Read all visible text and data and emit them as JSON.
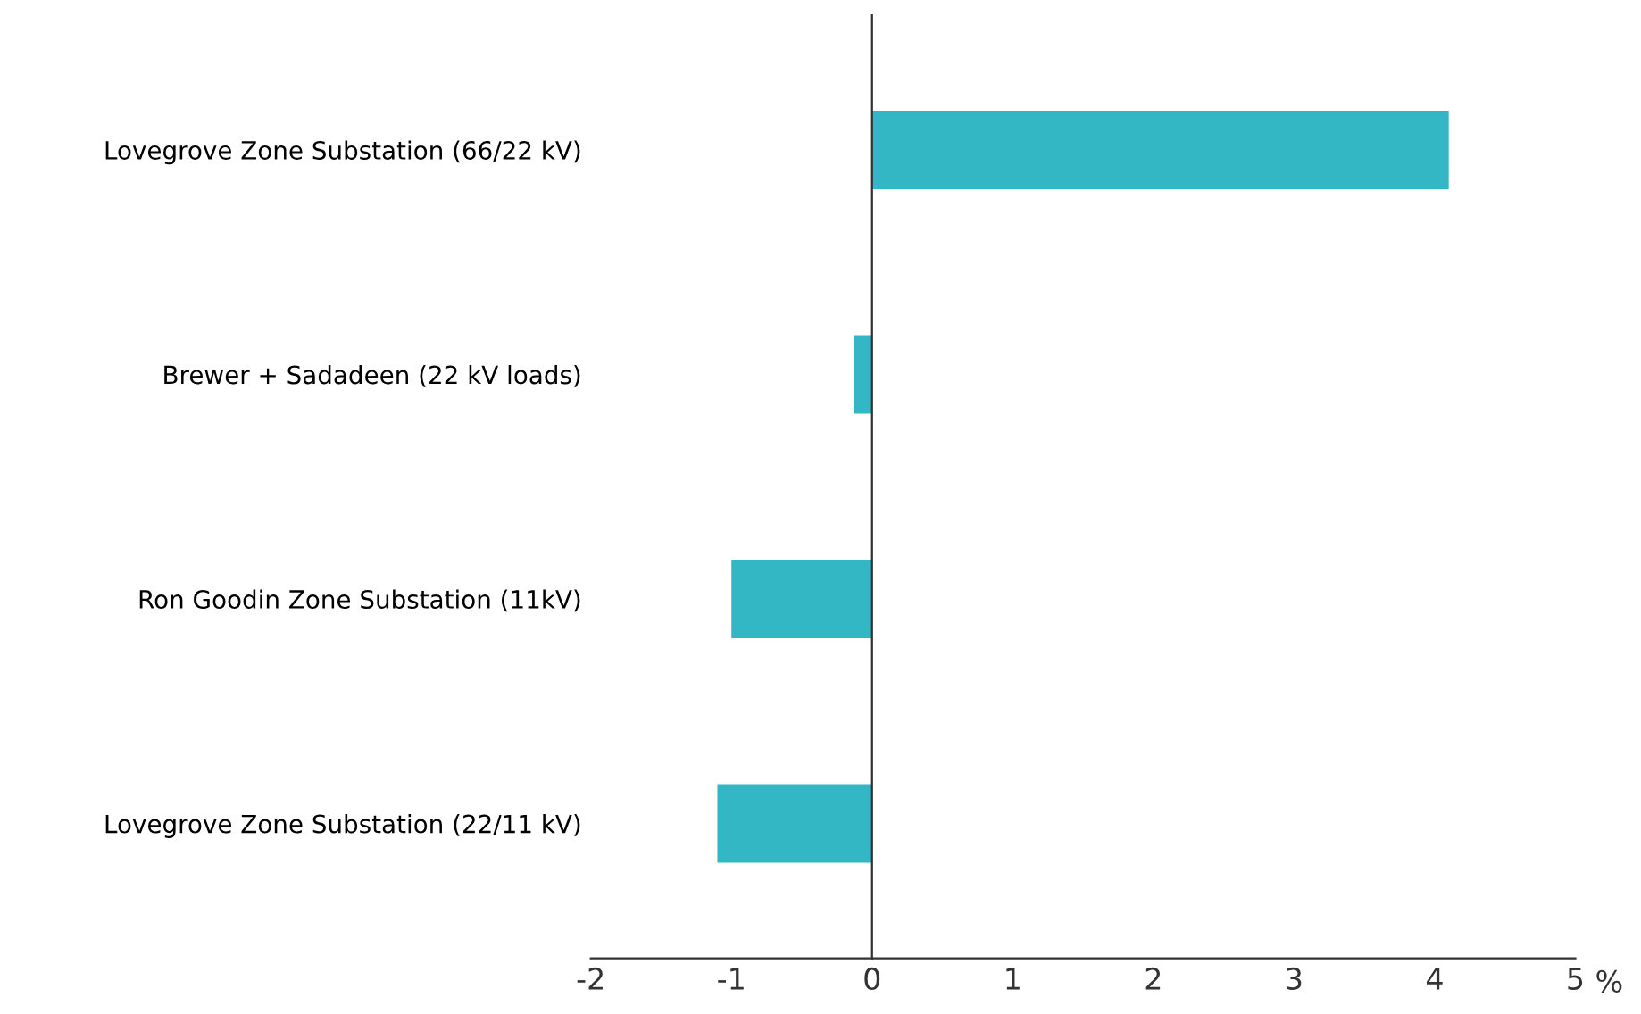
{
  "chart_data": {
    "type": "bar",
    "orientation": "horizontal",
    "categories": [
      "Lovegrove Zone Substation (66/22 kV)",
      "Brewer + Sadadeen (22 kV loads)",
      "Ron Goodin Zone Substation (11kV)",
      "Lovegrove Zone Substation (22/11 kV)"
    ],
    "values": [
      4.1,
      -0.13,
      -1.0,
      -1.1
    ],
    "color": "#33b7c4",
    "xlabel": "%",
    "xlim": [
      -2,
      5
    ],
    "xticks": [
      -2,
      -1,
      0,
      1,
      2,
      3,
      4,
      5
    ]
  }
}
